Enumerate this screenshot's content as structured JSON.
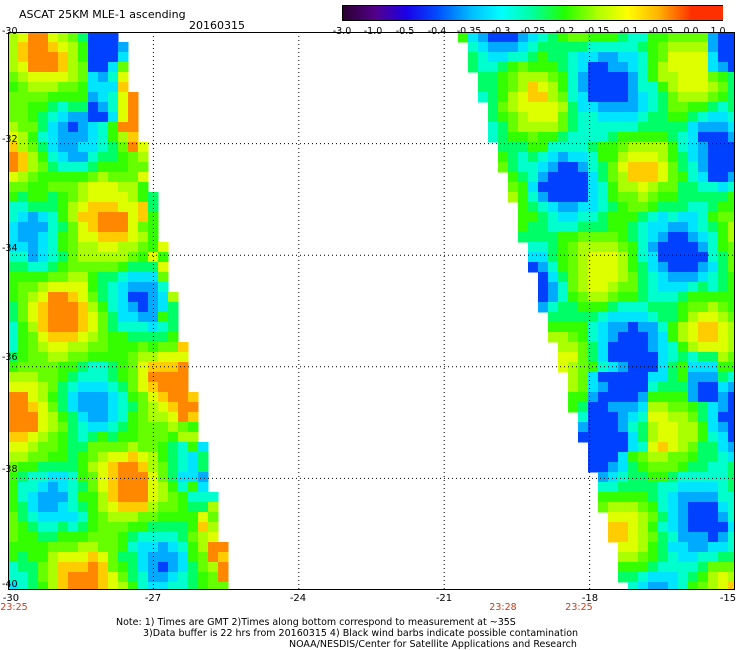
{
  "header": {
    "title": "ASCAT 25KM MLE-1 ascending",
    "date": "20160315"
  },
  "colorbar": {
    "ticks": [
      "-3.0",
      "-1.0",
      "-0.5",
      "-0.4",
      "-0.35",
      "-0.3",
      "-0.25",
      "-0.2",
      "-0.15",
      "-0.1",
      "-0.05",
      "0.0",
      "1.0"
    ],
    "colors": [
      "#2a0030",
      "#54008a",
      "#1a00e8",
      "#0050ff",
      "#00b8ff",
      "#00ffff",
      "#00ff9a",
      "#22ff00",
      "#aaff00",
      "#ffff00",
      "#ffb000",
      "#ff3000"
    ]
  },
  "map": {
    "lat_labels": [
      "-30",
      "-32",
      "-34",
      "-36",
      "-38",
      "-40"
    ],
    "lon_labels": [
      "-30",
      "-27",
      "-24",
      "-21",
      "-18",
      "-15"
    ],
    "time_labels": [
      "23:25",
      "23:28",
      "23:25"
    ],
    "lat_range": [
      -40,
      -30
    ],
    "lon_range": [
      -30,
      -15
    ]
  },
  "notes": {
    "line1": "Note: 1) Times are GMT 2)Times along bottom correspond to measurement at ~35S",
    "line2": "3)Data buffer is 22 hrs from 20160315 4) Black wind barbs indicate possible contamination",
    "line3": "NOAA/NESDIS/Center for Satellite Applications and Research"
  }
}
